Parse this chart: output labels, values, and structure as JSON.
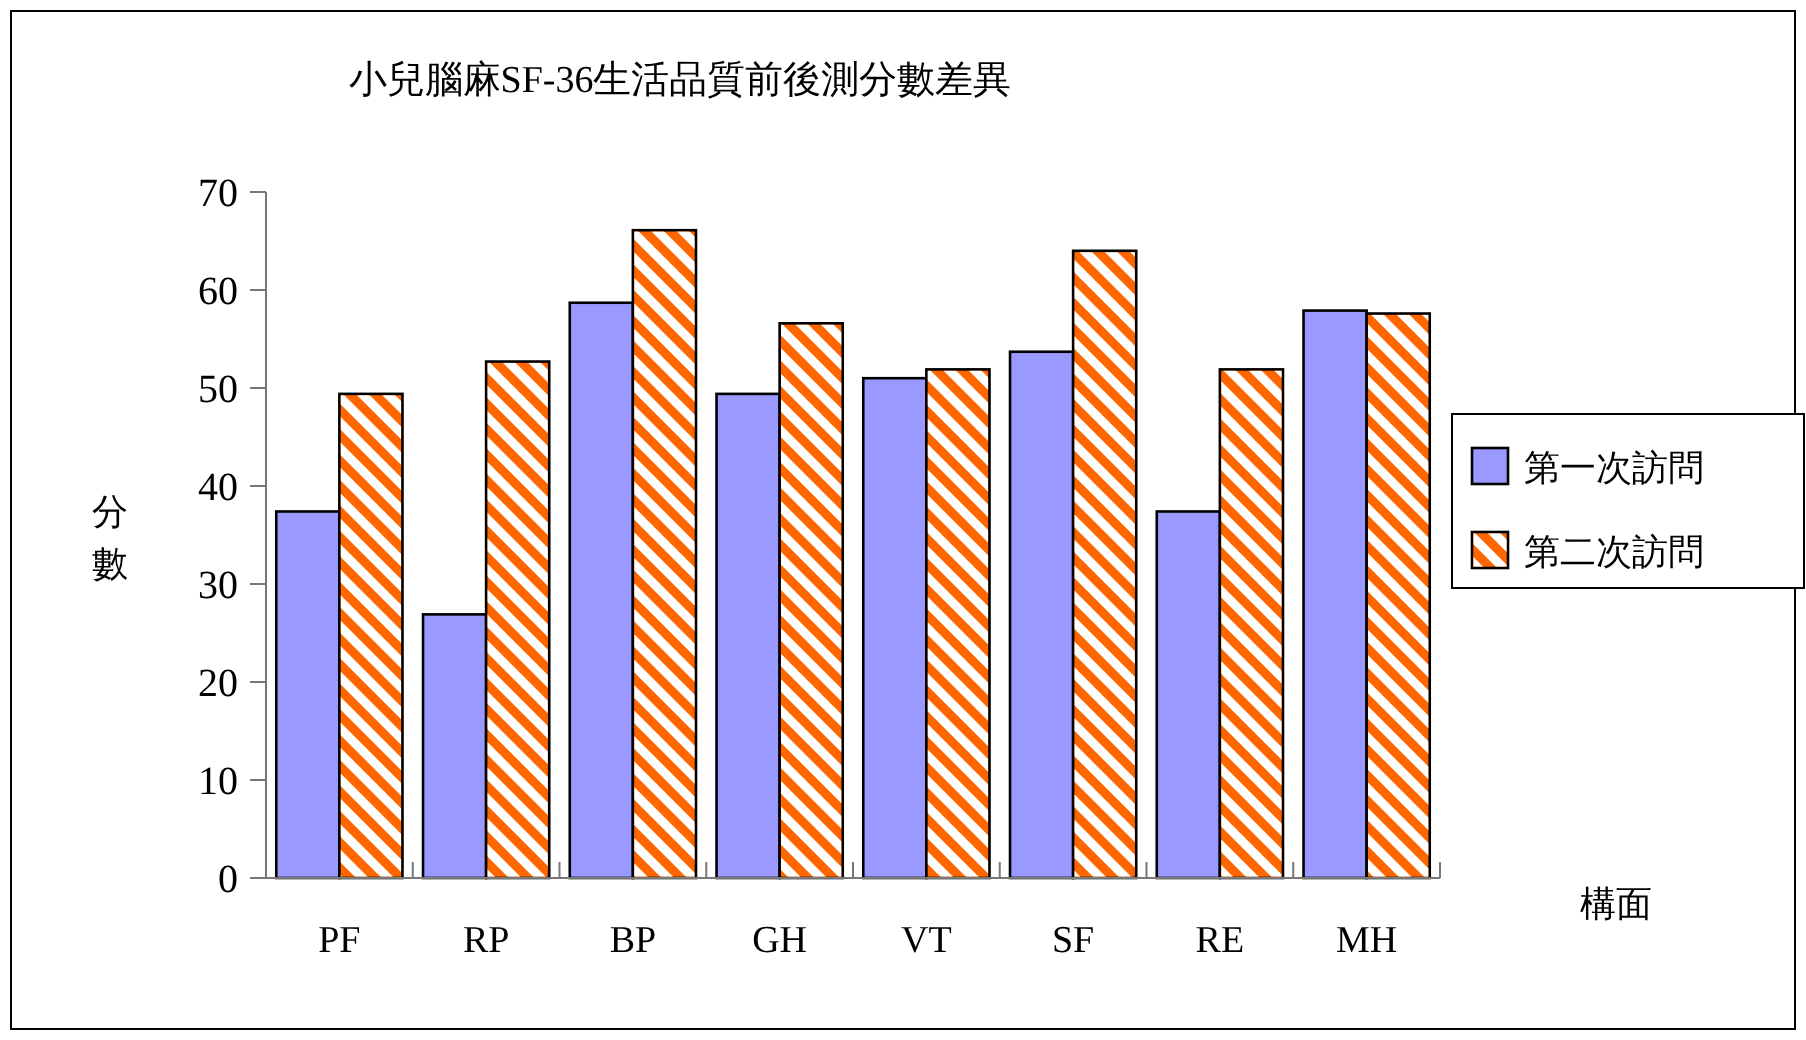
{
  "chart_data": {
    "type": "bar",
    "title": "小兒腦麻SF-36生活品質前後測分數差異",
    "xlabel": "構面",
    "ylabel": "分數",
    "categories": [
      "PF",
      "RP",
      "BP",
      "GH",
      "VT",
      "SF",
      "RE",
      "MH"
    ],
    "series": [
      {
        "name": "第一次訪問",
        "color": "#9999ff",
        "values": [
          37.4,
          26.9,
          58.7,
          49.4,
          51.0,
          53.7,
          37.4,
          57.9
        ]
      },
      {
        "name": "第二次訪問",
        "color": "#ff6600",
        "values": [
          49.4,
          52.7,
          66.1,
          56.6,
          51.9,
          64.0,
          51.9,
          57.6
        ]
      }
    ],
    "ylim": [
      0,
      70
    ],
    "yticks": [
      0,
      10,
      20,
      30,
      40,
      50,
      60,
      70
    ],
    "legend": "right"
  }
}
